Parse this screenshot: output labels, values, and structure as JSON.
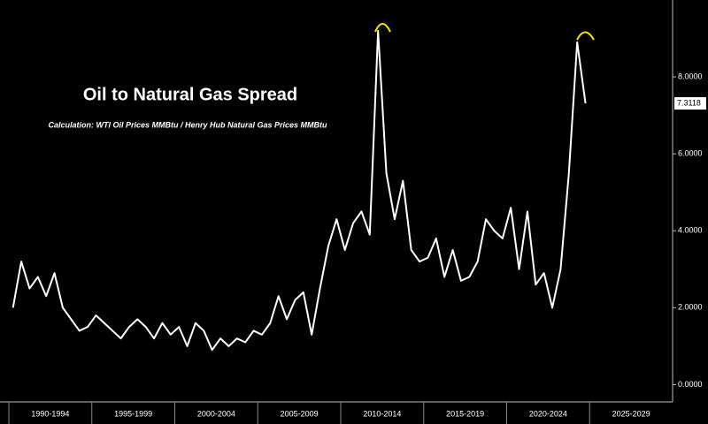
{
  "chart_data": {
    "type": "line",
    "title": "Oil to Natural Gas Spread",
    "subtitle": "Calculation: WTI Oil Prices MMBtu / Henry Hub Natural Gas Prices MMBtu",
    "categories": [
      null,
      null,
      null,
      null,
      null,
      "1990-1994",
      null,
      null,
      null,
      null,
      null,
      null,
      null,
      null,
      null,
      "1995-1999",
      null,
      null,
      null,
      null,
      null,
      null,
      null,
      null,
      null,
      "2000-2004",
      null,
      null,
      null,
      null,
      null,
      null,
      null,
      null,
      null,
      "2005-2009",
      null,
      null,
      null,
      null,
      null,
      null,
      null,
      null,
      null,
      "2010-2014",
      null,
      null,
      null,
      null,
      null,
      null,
      null,
      null,
      null,
      "2015-2019",
      null,
      null,
      null,
      null,
      null,
      null,
      null,
      null,
      null,
      "2020-2024",
      null,
      null,
      null,
      null,
      null,
      null,
      null,
      null,
      null,
      "2025-2029",
      null,
      null,
      null,
      null
    ],
    "series": [
      {
        "name": "Oil to Natural Gas Spread",
        "color": "#ffffff",
        "values": [
          2.0,
          3.2,
          2.5,
          2.8,
          2.3,
          2.9,
          2.0,
          1.7,
          1.4,
          1.5,
          1.8,
          1.6,
          1.4,
          1.2,
          1.5,
          1.7,
          1.5,
          1.2,
          1.6,
          1.3,
          1.5,
          1.0,
          1.6,
          1.4,
          0.9,
          1.2,
          1.0,
          1.2,
          1.1,
          1.4,
          1.3,
          1.6,
          2.3,
          1.7,
          2.2,
          2.4,
          1.3,
          2.5,
          3.6,
          4.3,
          3.5,
          4.2,
          4.5,
          3.9,
          9.2,
          5.5,
          4.3,
          5.3,
          3.5,
          3.2,
          3.3,
          3.8,
          2.8,
          3.5,
          2.7,
          2.8,
          3.2,
          4.3,
          4.0,
          3.8,
          4.6,
          3.0,
          4.5,
          2.6,
          2.9,
          2.0,
          3.0,
          5.5,
          8.9,
          7.3118,
          null,
          null,
          null,
          null,
          null,
          null,
          null,
          null,
          null,
          null
        ]
      }
    ],
    "last_value_label": "7.3118",
    "ylim": [
      -0.45,
      10
    ],
    "yticks": [
      {
        "value": 0,
        "label": "0.0000"
      },
      {
        "value": 2,
        "label": "2.0000"
      },
      {
        "value": 4,
        "label": "4.0000"
      },
      {
        "value": 6,
        "label": "6.0000"
      },
      {
        "value": 8,
        "label": "8.0000"
      }
    ],
    "grid": false
  }
}
